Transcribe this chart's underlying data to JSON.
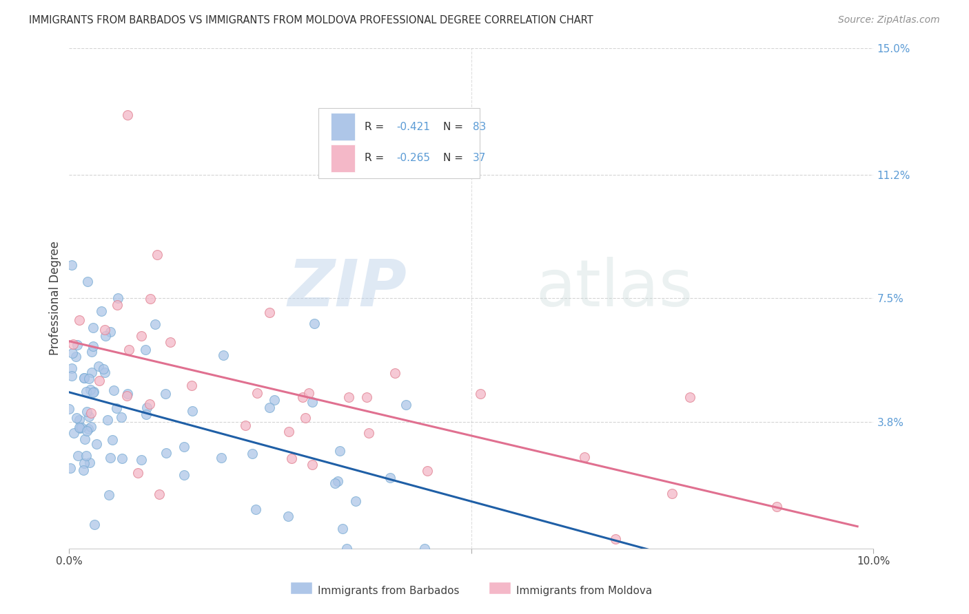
{
  "title": "IMMIGRANTS FROM BARBADOS VS IMMIGRANTS FROM MOLDOVA PROFESSIONAL DEGREE CORRELATION CHART",
  "source": "Source: ZipAtlas.com",
  "ylabel": "Professional Degree",
  "x_min": 0.0,
  "x_max": 10.0,
  "y_min": 0.0,
  "y_max": 15.0,
  "right_yticks": [
    0.0,
    3.8,
    7.5,
    11.2,
    15.0
  ],
  "right_ytick_labels": [
    "",
    "3.8%",
    "7.5%",
    "11.2%",
    "15.0%"
  ],
  "watermark_zip": "ZIP",
  "watermark_atlas": "atlas",
  "barbados_color": "#aec6e8",
  "barbados_edge_color": "#7aadd4",
  "barbados_line_color": "#1f5fa6",
  "moldova_color": "#f4b8c8",
  "moldova_edge_color": "#e08090",
  "moldova_line_color": "#e07090",
  "background_color": "#ffffff",
  "grid_color": "#d0d0d0",
  "title_color": "#303030",
  "source_color": "#909090",
  "right_label_color": "#5b9bd5",
  "barbados_R": -0.421,
  "barbados_N": 83,
  "moldova_R": -0.265,
  "moldova_N": 37,
  "legend_R_text": "R = ",
  "legend_N_text": "N = ",
  "legend_R_color": "#333333",
  "legend_val_color": "#5b9bd5",
  "bottom_label_barbados": "Immigrants from Barbados",
  "bottom_label_moldova": "Immigrants from Moldova"
}
